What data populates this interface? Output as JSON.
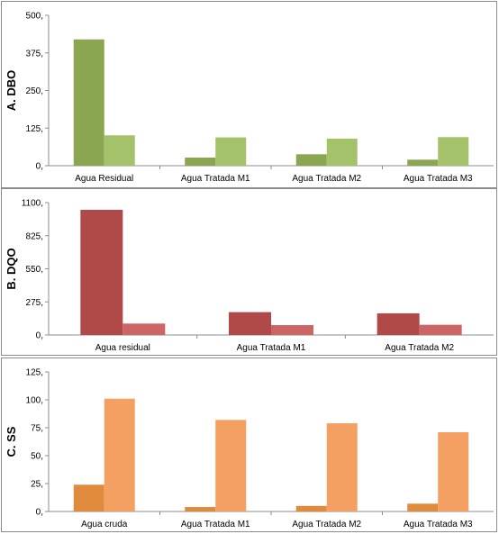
{
  "chart_data": [
    {
      "type": "bar",
      "ylabel": "A. DBO",
      "categories": [
        "Agua Residual",
        "Agua Tratada M1",
        "Agua Tratada M2",
        "Agua Tratada M3"
      ],
      "series": [
        {
          "values": [
            420,
            27,
            38,
            20
          ]
        },
        {
          "values": [
            101,
            94,
            90,
            95
          ]
        }
      ],
      "yticks": [
        "0,",
        "125,",
        "250,",
        "375,",
        "500,"
      ],
      "ylim": [
        0,
        500
      ],
      "colors": [
        "#8aa650",
        "#a3c26a"
      ],
      "grid": false
    },
    {
      "type": "bar",
      "ylabel": "B. DQO",
      "categories": [
        "Agua residual",
        "Agua Tratada M1",
        "Agua Tratada M2"
      ],
      "series": [
        {
          "values": [
            1040,
            190,
            180
          ]
        },
        {
          "values": [
            95,
            82,
            85
          ]
        }
      ],
      "yticks": [
        "0,",
        "275,",
        "550,",
        "825,",
        "1100,"
      ],
      "ylim": [
        0,
        1100
      ],
      "colors": [
        "#b04a48",
        "#cc6666"
      ],
      "grid": false
    },
    {
      "type": "bar",
      "ylabel": "C. SS",
      "categories": [
        "Agua cruda",
        "Agua Tratada M1",
        "Agua Tratada M2",
        "Agua Tratada M3"
      ],
      "series": [
        {
          "values": [
            24,
            4,
            5,
            7
          ]
        },
        {
          "values": [
            101,
            82,
            79,
            71
          ]
        }
      ],
      "yticks": [
        "0,",
        "25,",
        "50,",
        "75,",
        "100,",
        "125,"
      ],
      "ylim": [
        0,
        125
      ],
      "colors": [
        "#e08a3e",
        "#f4a062"
      ],
      "grid": false
    }
  ]
}
